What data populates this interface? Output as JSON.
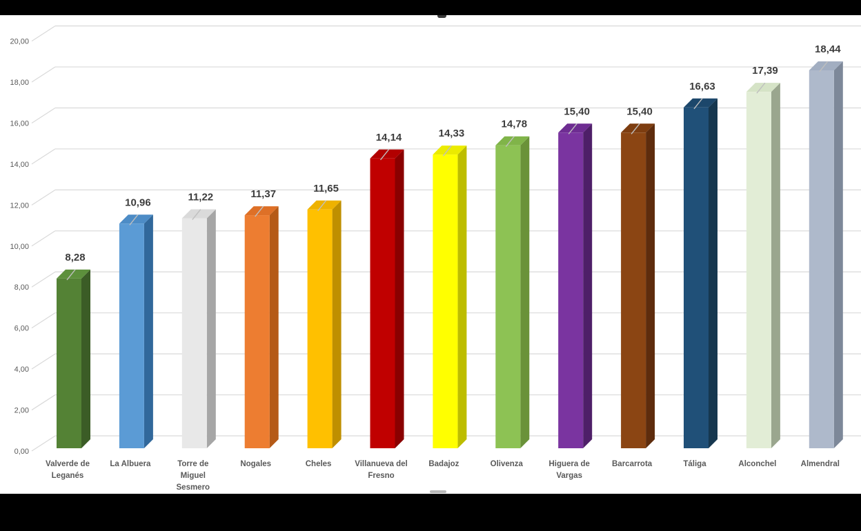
{
  "page": {
    "letterbox_color": "#000000",
    "canvas_color": "#ffffff"
  },
  "chart_data": {
    "type": "bar",
    "style": "3d-column",
    "title": "",
    "xlabel": "",
    "ylabel": "",
    "ylim": [
      0,
      20
    ],
    "y_tick_step": 2,
    "grid": true,
    "legend": false,
    "number_format": "comma-decimal",
    "y_ticks": [
      "0,00",
      "2,00",
      "4,00",
      "6,00",
      "8,00",
      "10,00",
      "12,00",
      "14,00",
      "16,00",
      "18,00",
      "20,00"
    ],
    "categories": [
      "Valverde de Leganés",
      "La Albuera",
      "Torre de Miguel Sesmero",
      "Nogales",
      "Cheles",
      "Villanueva del Fresno",
      "Badajoz",
      "Olivenza",
      "Higuera de Vargas",
      "Barcarrota",
      "Táliga",
      "Alconchel",
      "Almendral"
    ],
    "category_lines": [
      [
        "Valverde de",
        "Leganés"
      ],
      [
        "La Albuera"
      ],
      [
        "Torre de",
        "Miguel",
        "Sesmero"
      ],
      [
        "Nogales"
      ],
      [
        "Cheles"
      ],
      [
        "Villanueva del",
        "Fresno"
      ],
      [
        "Badajoz"
      ],
      [
        "Olivenza"
      ],
      [
        "Higuera de",
        "Vargas"
      ],
      [
        "Barcarrota"
      ],
      [
        "Táliga"
      ],
      [
        "Alconchel"
      ],
      [
        "Almendral"
      ]
    ],
    "values": [
      8.28,
      10.96,
      11.22,
      11.37,
      11.65,
      14.14,
      14.33,
      14.78,
      15.4,
      15.4,
      16.63,
      17.39,
      18.44
    ],
    "value_labels": [
      "8,28",
      "10,96",
      "11,22",
      "11,37",
      "11,65",
      "14,14",
      "14,33",
      "14,78",
      "15,40",
      "15,40",
      "16,63",
      "17,39",
      "18,44"
    ],
    "bar_colors": [
      {
        "front": "#548235",
        "top": "#5d903c",
        "side": "#3b5c26"
      },
      {
        "front": "#5b9bd5",
        "top": "#4d8cc6",
        "side": "#31689b"
      },
      {
        "front": "#e8e8e8",
        "top": "#dadada",
        "side": "#a6a6a6"
      },
      {
        "front": "#ed7d31",
        "top": "#de7027",
        "side": "#b55a17"
      },
      {
        "front": "#ffc000",
        "top": "#eeb200",
        "side": "#bf8f00"
      },
      {
        "front": "#c00000",
        "top": "#b20000",
        "side": "#8a0000"
      },
      {
        "front": "#ffff00",
        "top": "#ebeb00",
        "side": "#bdbd00"
      },
      {
        "front": "#8dc254",
        "top": "#80b449",
        "side": "#6a9239"
      },
      {
        "front": "#7a34a0",
        "top": "#6e2d92",
        "side": "#4e1f68"
      },
      {
        "front": "#8b4513",
        "top": "#7d3d10",
        "side": "#5e2c0d"
      },
      {
        "front": "#205078",
        "top": "#1c476b",
        "side": "#16374f"
      },
      {
        "front": "#e2edd6",
        "top": "#d5e3c6",
        "side": "#9aa68e"
      },
      {
        "front": "#aeb9cb",
        "top": "#a2aec1",
        "side": "#7d8899"
      }
    ],
    "style_colors": {
      "gridline": "#d9d9d9",
      "tick_text": "#595959",
      "category_text": "#595959",
      "value_text": "#3d3d3d",
      "leader_line": "#bfbfbf"
    }
  }
}
